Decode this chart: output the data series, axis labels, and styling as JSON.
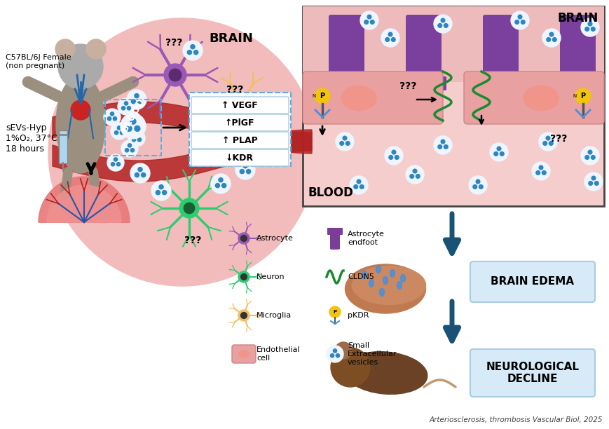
{
  "citation": "Arteriosclerosis, thrombosis Vascular Biol, 2025",
  "mouse_label": "C57BL/6J Female\n(non pregnant)",
  "sevs_label": "sEVs-Hyp\n1%O₂, 37°C\n18 hours",
  "biomarkers": [
    "↑ VEGF",
    "↑PlGF",
    "↑ PLAP",
    "↓KDR"
  ],
  "bg_color": "#FFFFFF",
  "arrow_color": "#1A5276",
  "circle_fill": "#F2BCBC",
  "circle_edge": "#222222",
  "blood_vessel_color": "#B22222",
  "astrocyte_color": "#9B59B6",
  "astrocyte_light": "#C39BD3",
  "neuron_color": "#2ECC71",
  "microglia_color": "#F0C060",
  "bbb_brain_color": "#EDBBBB",
  "bbb_endo_color": "#E8A0A0",
  "bbb_blood_color": "#F5CDCD",
  "bbb_purple": "#7B3F9E",
  "cldn5_color": "#1A8A30",
  "pkdr_color": "#F1C40F",
  "vesicle_outer": "#EEF5FF",
  "vesicle_edge": "#7AACCC",
  "vesicle_dot": "#2E86C1",
  "edema_box_fill": "#D6EAF8",
  "edema_box_edge": "#A9CCE3",
  "neuro_box_fill": "#D6EAF8",
  "neuro_box_edge": "#A9CCE3",
  "mouse_body_color": "#B0A090",
  "mouse_dark": "#6B4226",
  "brain_model_color": "#E88888",
  "placenta_color": "#F08080"
}
